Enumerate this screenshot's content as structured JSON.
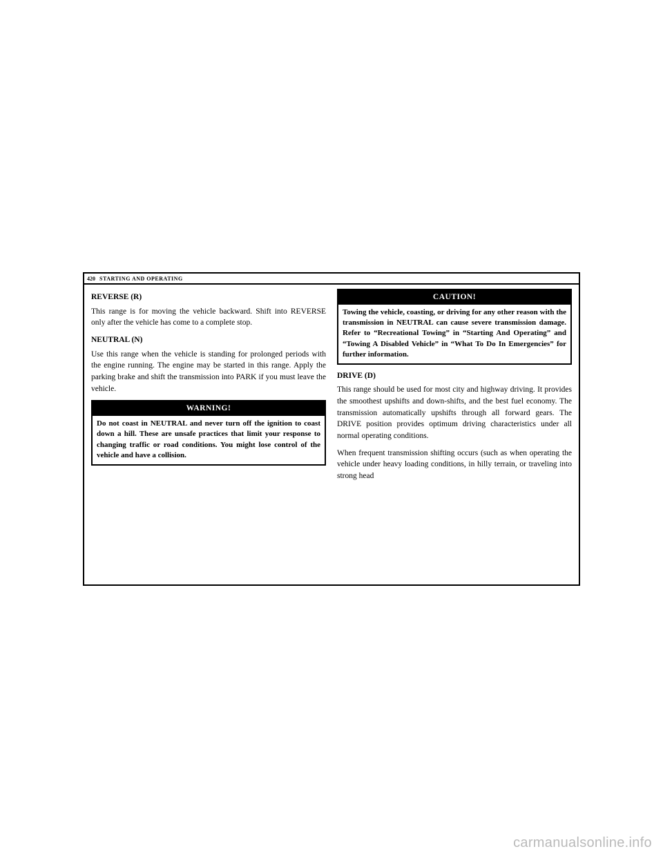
{
  "page_number": "420",
  "section_header": "STARTING AND OPERATING",
  "left_column": {
    "h_reverse": "REVERSE (R)",
    "p_reverse": "This range is for moving the vehicle backward. Shift into REVERSE only after the vehicle has come to a complete stop.",
    "h_neutral": "NEUTRAL (N)",
    "p_neutral": "Use this range when the vehicle is standing for prolonged periods with the engine running. The engine may be started in this range. Apply the parking brake and shift the transmission into PARK if you must leave the vehicle.",
    "warning_title": "WARNING!",
    "warning_body": "Do not coast in NEUTRAL and never turn off the ignition to coast down a hill. These are unsafe practices that limit your response to changing traffic or road conditions. You might lose control of the vehicle and have a collision."
  },
  "right_column": {
    "caution_title": "CAUTION!",
    "caution_body": "Towing the vehicle, coasting, or driving for any other reason with the transmission in NEUTRAL can cause severe transmission damage. Refer to “Recreational Towing” in “Starting And Operating” and “Towing A Disabled Vehicle” in “What To Do In Emergencies” for further information.",
    "h_drive": "DRIVE (D)",
    "p_drive1": "This range should be used for most city and highway driving. It provides the smoothest upshifts and down-shifts, and the best fuel economy. The transmission automatically upshifts through all forward gears. The DRIVE position provides optimum driving characteristics under all normal operating conditions.",
    "p_drive2": "When frequent transmission shifting occurs (such as when operating the vehicle under heavy loading conditions, in hilly terrain, or traveling into strong head"
  },
  "watermark": "carmanualsonline.info"
}
